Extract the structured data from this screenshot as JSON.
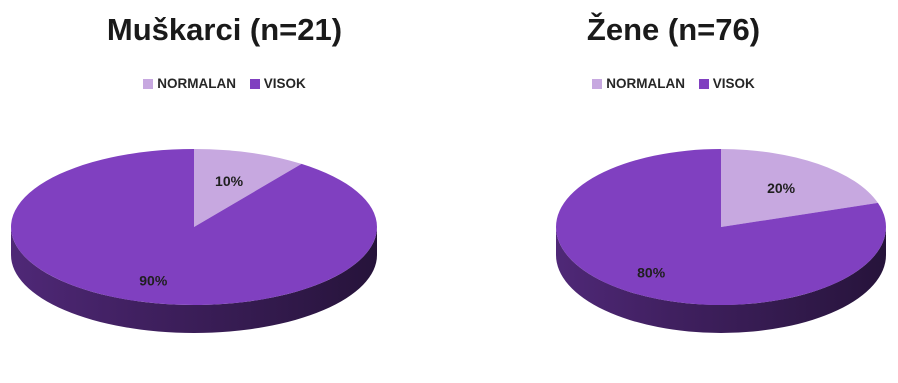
{
  "chart_data": [
    {
      "type": "pie",
      "title": "Muškarci (n=21)",
      "legend": [
        "NORMALAN",
        "VISOK"
      ],
      "legend_position": "top",
      "slices": [
        {
          "label": "NORMALAN",
          "value": 10,
          "data_label": "10%",
          "color": "#c7a8e0"
        },
        {
          "label": "VISOK",
          "value": 90,
          "data_label": "90%",
          "color": "#8040c0"
        }
      ]
    },
    {
      "type": "pie",
      "title": "Žene (n=76)",
      "legend": [
        "NORMALAN",
        "VISOK"
      ],
      "legend_position": "top",
      "slices": [
        {
          "label": "NORMALAN",
          "value": 20,
          "data_label": "20%",
          "color": "#c7a8e0"
        },
        {
          "label": "VISOK",
          "value": 80,
          "data_label": "80%",
          "color": "#8040c0"
        }
      ]
    }
  ]
}
